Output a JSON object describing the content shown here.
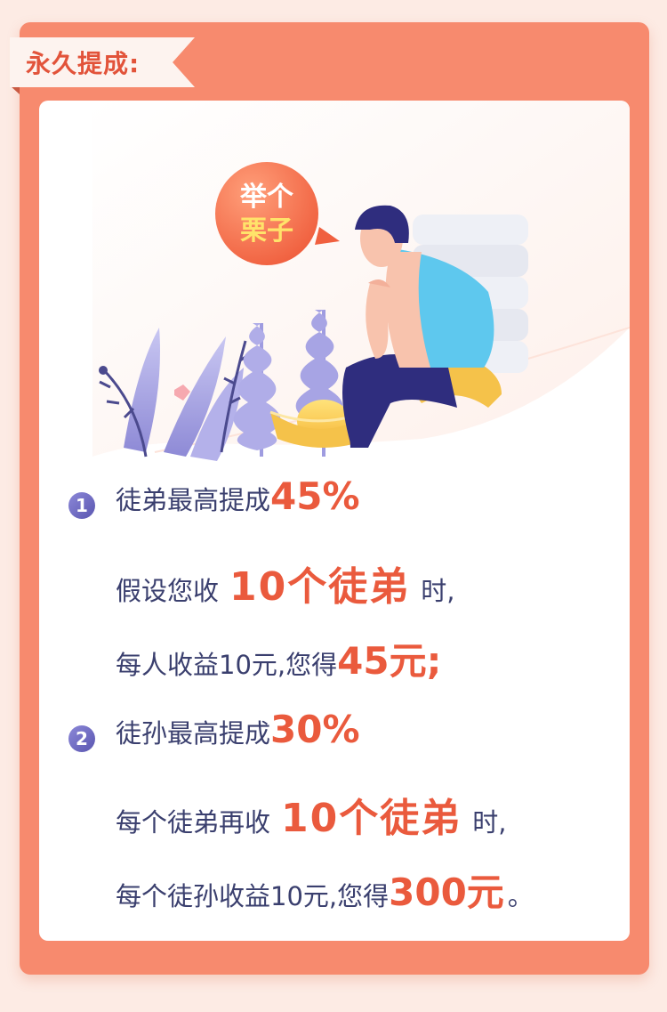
{
  "section_title": "永久提成:",
  "bubble": {
    "line1": "举个",
    "line2": "栗子"
  },
  "colors": {
    "accent": "#ea5a3d",
    "frame": "#f78a6e",
    "text": "#3a3f6e",
    "badge": "#6b67c4"
  },
  "items": [
    {
      "number": "1",
      "heading_text": "徒弟最高提成",
      "heading_value": "45%",
      "line2_pre": "假设您收",
      "line2_highlight": "10个徒弟",
      "line2_post": "时,",
      "line3_pre": "每人收益10元,您得",
      "line3_highlight": "45元",
      "line3_post": ";"
    },
    {
      "number": "2",
      "heading_text": "徒孙最高提成",
      "heading_value": "30%",
      "line2_pre": "每个徒弟再收",
      "line2_highlight": "10个徒弟",
      "line2_post": "时,",
      "line3_pre": "每个徒孙收益10元,您得",
      "line3_highlight": "300元",
      "line3_post": "。"
    }
  ]
}
